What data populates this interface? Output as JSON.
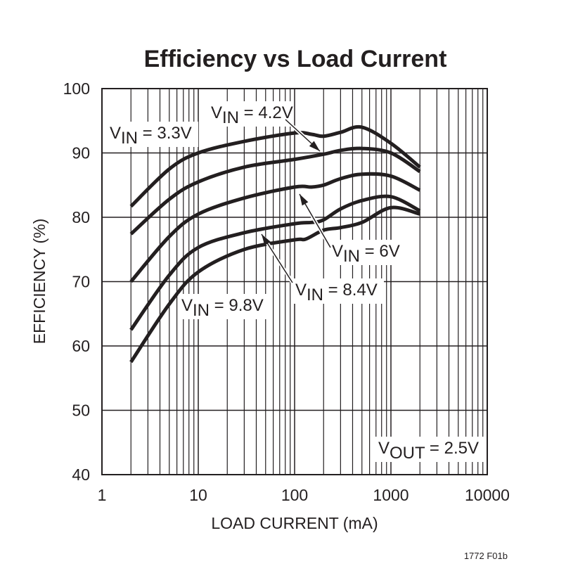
{
  "chart_data": {
    "type": "line",
    "title": "Efficiency vs Load Current",
    "xlabel": "LOAD CURRENT (mA)",
    "ylabel": "EFFICIENCY (%)",
    "xscale": "log",
    "xlim": [
      1,
      10000
    ],
    "ylim": [
      40,
      100
    ],
    "xticks": [
      "1",
      "10",
      "100",
      "1000",
      "10000"
    ],
    "yticks": [
      "40",
      "50",
      "60",
      "70",
      "80",
      "90",
      "100"
    ],
    "grid": true,
    "line_color": "#231f20",
    "series": [
      {
        "name": {
          "v": "V",
          "sub": "IN",
          "rest": " = 3.3V"
        },
        "x": [
          2,
          5,
          10,
          30,
          100,
          150,
          200,
          300,
          500,
          1000,
          2000
        ],
        "y": [
          81.7,
          87.5,
          90,
          91.8,
          93.1,
          92.9,
          92.6,
          93.2,
          94,
          91.5,
          87.8
        ]
      },
      {
        "name": {
          "v": "V",
          "sub": "IN",
          "rest": " = 4.2V"
        },
        "x": [
          2,
          5,
          10,
          30,
          100,
          200,
          300,
          500,
          1000,
          2000
        ],
        "y": [
          77.4,
          82.8,
          85.5,
          87.8,
          89,
          89.8,
          90.4,
          90.7,
          90,
          87.1
        ]
      },
      {
        "name": {
          "v": "V",
          "sub": "IN",
          "rest": " = 6V"
        },
        "x": [
          2,
          5,
          10,
          30,
          100,
          150,
          200,
          300,
          500,
          1000,
          2000
        ],
        "y": [
          70,
          77,
          80.5,
          83,
          84.7,
          84.7,
          85,
          86,
          86.7,
          86.4,
          84.2
        ]
      },
      {
        "name": {
          "v": "V",
          "sub": "IN",
          "rest": " = 8.4V"
        },
        "x": [
          2,
          5,
          10,
          30,
          100,
          150,
          200,
          300,
          500,
          1000,
          2000
        ],
        "y": [
          62.5,
          71,
          75.3,
          77.6,
          79,
          79.2,
          79.6,
          81.3,
          82.6,
          83.2,
          81
        ]
      },
      {
        "name": {
          "v": "V",
          "sub": "IN",
          "rest": " = 9.8V"
        },
        "x": [
          2,
          5,
          10,
          30,
          100,
          130,
          200,
          300,
          500,
          1000,
          2000
        ],
        "y": [
          57.5,
          66.5,
          71.5,
          75,
          76.5,
          76.6,
          78,
          78.4,
          79.2,
          81.5,
          80.5
        ]
      }
    ],
    "annotations": {
      "vout": {
        "v": "V",
        "sub": "OUT",
        "rest": " = 2.5V"
      },
      "figure_id": "1772 F01b"
    }
  }
}
